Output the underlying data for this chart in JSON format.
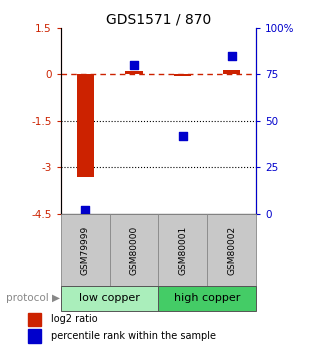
{
  "title": "GDS1571 / 870",
  "samples": [
    "GSM79999",
    "GSM80000",
    "GSM80001",
    "GSM80002"
  ],
  "log2_ratio": [
    -3.32,
    0.1,
    -0.05,
    0.15
  ],
  "percentile_rank": [
    2.0,
    80.0,
    42.0,
    85.0
  ],
  "ylim_left": [
    -4.5,
    1.5
  ],
  "ylim_right": [
    0,
    100
  ],
  "left_yticks": [
    1.5,
    0,
    -1.5,
    -3,
    -4.5
  ],
  "right_yticks": [
    100,
    75,
    50,
    25,
    0
  ],
  "right_yticklabels": [
    "100%",
    "75",
    "50",
    "25",
    "0"
  ],
  "protocol_groups": [
    {
      "label": "low copper",
      "samples": [
        0,
        1
      ],
      "color": "#aaeebb"
    },
    {
      "label": "high copper",
      "samples": [
        2,
        3
      ],
      "color": "#44cc66"
    }
  ],
  "bar_color": "#cc2200",
  "dot_color": "#0000cc",
  "dashed_line_color": "#cc2200",
  "dotted_line_color": "#000000",
  "bar_width": 0.35,
  "dot_size": 28,
  "bg_sample_header": "#c8c8c8",
  "title_fontsize": 10,
  "tick_fontsize": 7.5,
  "sample_fontsize": 6.5,
  "proto_fontsize": 8,
  "legend_fontsize": 7
}
